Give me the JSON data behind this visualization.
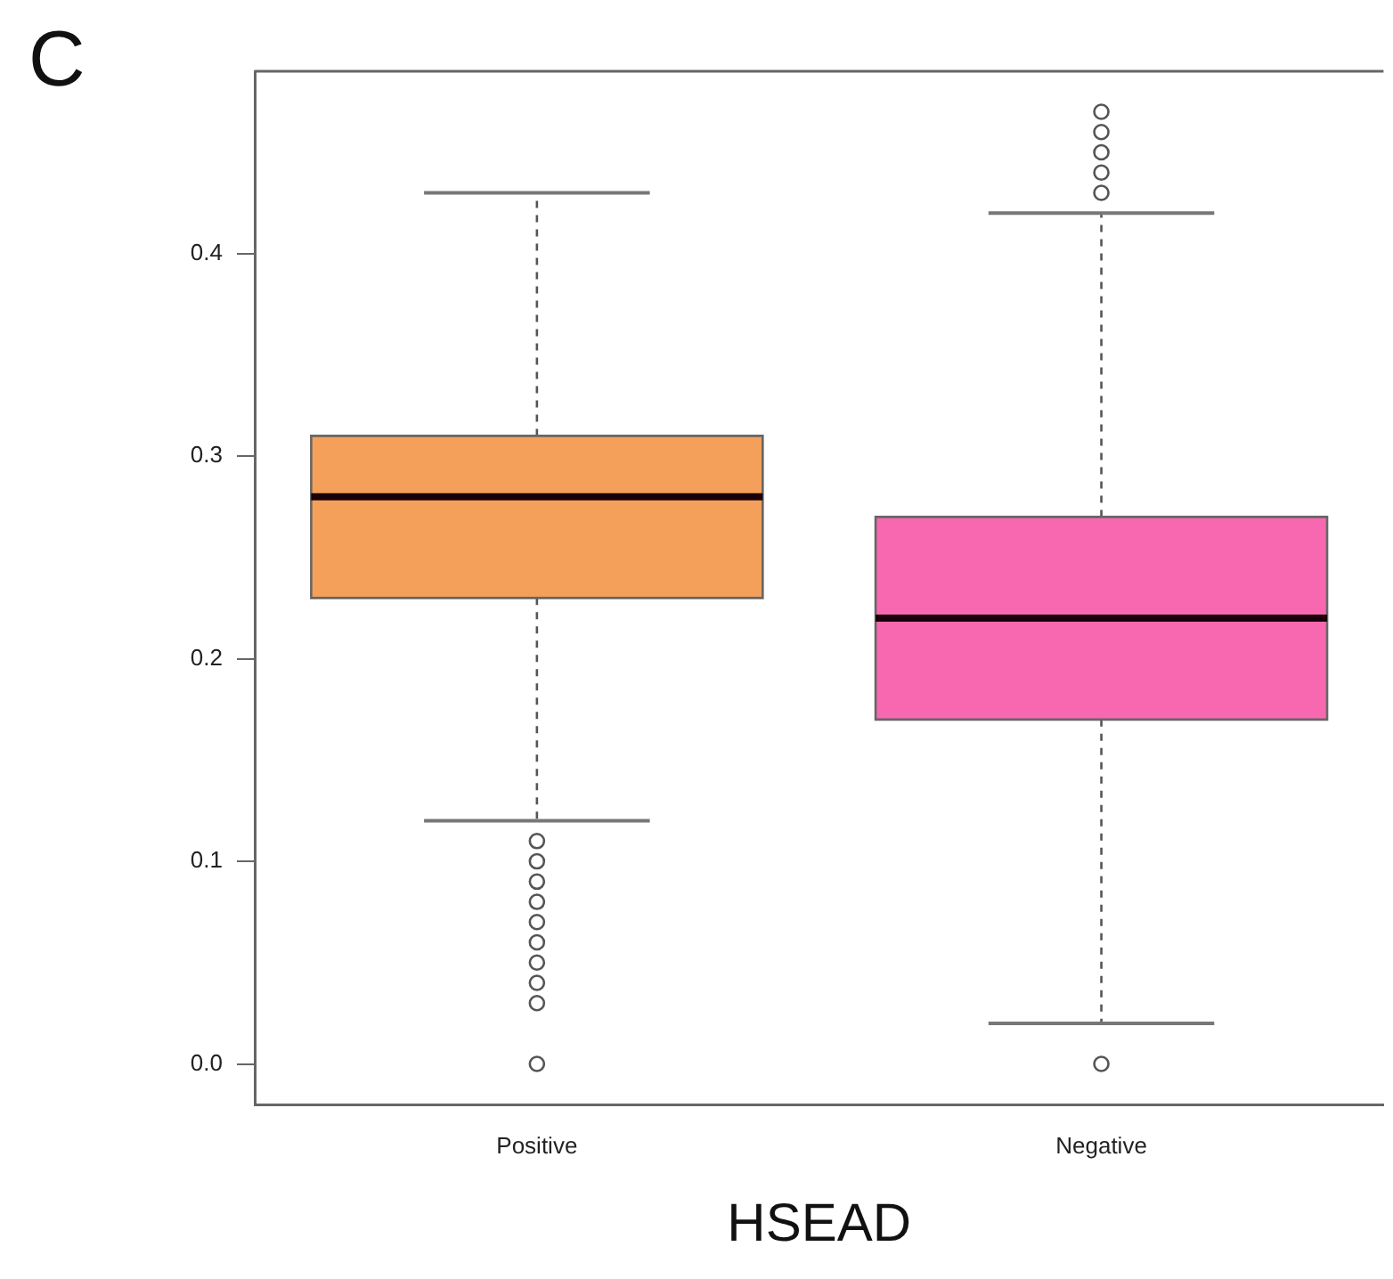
{
  "chart_data": {
    "type": "box",
    "title": "C",
    "xlabel": "HSEAD",
    "categories": [
      "Positive",
      "Negative"
    ],
    "colors": [
      "#f4a05a",
      "#f768b0"
    ],
    "boxes": [
      {
        "low": 0.12,
        "q1": 0.23,
        "median": 0.28,
        "q3": 0.31,
        "high": 0.43,
        "outliers": [
          0.11,
          0.1,
          0.09,
          0.08,
          0.07,
          0.06,
          0.05,
          0.04,
          0.03,
          0.0
        ]
      },
      {
        "low": 0.02,
        "q1": 0.17,
        "median": 0.22,
        "q3": 0.27,
        "high": 0.42,
        "outliers": [
          0.43,
          0.44,
          0.45,
          0.46,
          0.47,
          0.0
        ]
      }
    ],
    "marker": "circle",
    "ylim": [
      -0.02,
      0.49
    ],
    "yticks": [
      {
        "value": 0,
        "label": "0.0"
      },
      0.1,
      0.2,
      0.3,
      0.4
    ],
    "grid": false
  }
}
